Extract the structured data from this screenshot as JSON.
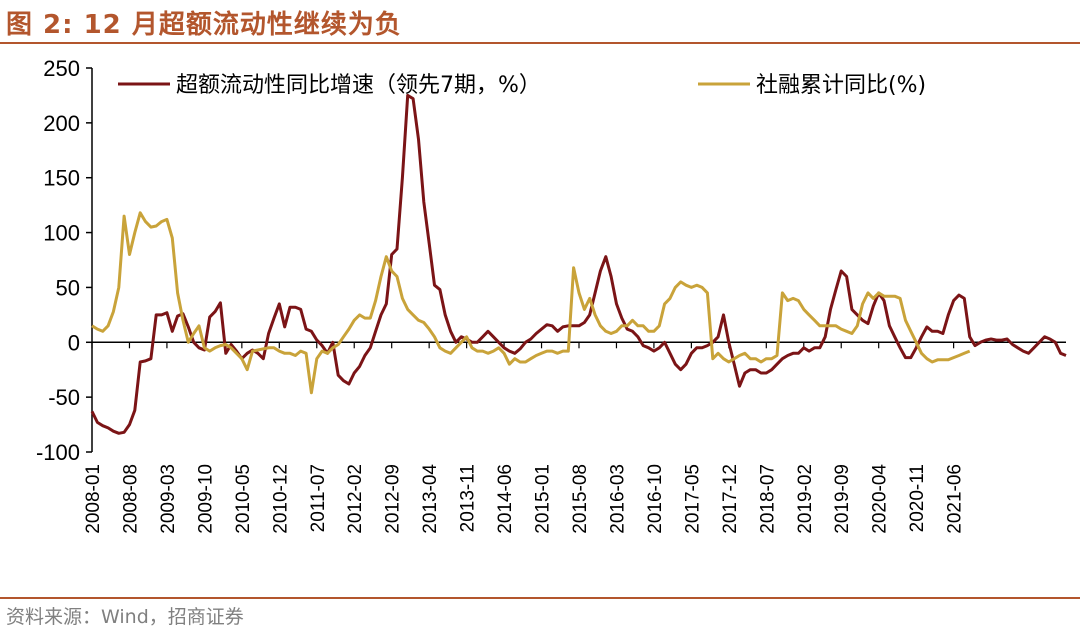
{
  "header": {
    "title": "图 2:  12 月超额流动性继续为负"
  },
  "footer": {
    "source": "资料来源：Wind，招商证券"
  },
  "colors": {
    "accent": "#b3562d",
    "series1": "#7b1416",
    "series2": "#c9a33a"
  },
  "chart_data": {
    "type": "line",
    "title": "",
    "xlabel": "",
    "ylabel": "",
    "ylim": [
      -100,
      250
    ],
    "yticks": [
      -100,
      -50,
      0,
      50,
      100,
      150,
      200,
      250
    ],
    "xticks": [
      "2008-01",
      "2008-08",
      "2009-03",
      "2009-10",
      "2010-05",
      "2010-12",
      "2011-07",
      "2012-02",
      "2012-09",
      "2013-04",
      "2013-11",
      "2014-06",
      "2015-01",
      "2015-08",
      "2016-03",
      "2016-10",
      "2017-05",
      "2017-12",
      "2018-07",
      "2019-02",
      "2019-09",
      "2020-04",
      "2020-11",
      "2021-06"
    ],
    "x_start": "2008-01",
    "legend_position": "top",
    "grid": false,
    "series": [
      {
        "name": "超额流动性同比增速（领先7期，%）",
        "color": "#7b1416",
        "values": [
          -63,
          -73,
          -76,
          -78,
          -81,
          -83,
          -82,
          -75,
          -62,
          -18,
          -17,
          -15,
          25,
          25,
          27,
          10,
          24,
          26,
          14,
          0,
          -5,
          -7,
          23,
          28,
          36,
          -10,
          -2,
          -8,
          -15,
          -10,
          -7,
          -10,
          -15,
          8,
          22,
          35,
          14,
          32,
          32,
          30,
          12,
          10,
          2,
          -3,
          -10,
          0,
          -30,
          -35,
          -38,
          -28,
          -22,
          -12,
          -5,
          10,
          25,
          35,
          80,
          85,
          150,
          225,
          222,
          185,
          128,
          90,
          52,
          48,
          25,
          10,
          0,
          5,
          3,
          0,
          0,
          5,
          10,
          5,
          0,
          -5,
          -8,
          -10,
          -6,
          0,
          3,
          8,
          12,
          16,
          15,
          10,
          14,
          15,
          15,
          15,
          18,
          25,
          45,
          65,
          78,
          60,
          35,
          22,
          12,
          10,
          5,
          -3,
          -5,
          -8,
          -5,
          0,
          -10,
          -20,
          -25,
          -20,
          -10,
          -5,
          -5,
          -3,
          0,
          5,
          25,
          0,
          -20,
          -40,
          -28,
          -25,
          -25,
          -28,
          -28,
          -25,
          -20,
          -15,
          -12,
          -10,
          -10,
          -5,
          -8,
          -5,
          -5,
          5,
          30,
          48,
          65,
          60,
          30,
          25,
          20,
          17,
          33,
          45,
          38,
          15,
          5,
          -5,
          -14,
          -14,
          -5,
          5,
          14,
          10,
          10,
          8,
          25,
          38,
          43,
          40,
          5,
          -3,
          0,
          2,
          3,
          2,
          2,
          3,
          -2,
          -5,
          -8,
          -10,
          -5,
          0,
          5,
          3,
          0,
          -10,
          -12
        ]
      },
      {
        "name": "社融累计同比(%)",
        "color": "#c9a33a",
        "values": [
          15,
          12,
          10,
          15,
          28,
          50,
          115,
          80,
          100,
          118,
          110,
          105,
          106,
          110,
          112,
          95,
          45,
          20,
          0,
          8,
          15,
          -5,
          -8,
          -5,
          -3,
          -2,
          -5,
          -10,
          -15,
          -25,
          -8,
          -7,
          -6,
          -5,
          -5,
          -8,
          -10,
          -10,
          -12,
          -8,
          -10,
          -46,
          -15,
          -8,
          -10,
          -5,
          -2,
          5,
          12,
          20,
          25,
          22,
          22,
          38,
          60,
          78,
          65,
          60,
          40,
          30,
          25,
          20,
          18,
          12,
          5,
          -5,
          -8,
          -10,
          -5,
          0,
          5,
          -5,
          -8,
          -8,
          -10,
          -8,
          -5,
          -10,
          -20,
          -15,
          -18,
          -18,
          -15,
          -12,
          -10,
          -8,
          -8,
          -10,
          -8,
          -8,
          68,
          45,
          30,
          40,
          25,
          15,
          10,
          8,
          10,
          15,
          15,
          20,
          15,
          15,
          10,
          10,
          15,
          35,
          40,
          50,
          55,
          52,
          50,
          52,
          50,
          45,
          -15,
          -10,
          -15,
          -18,
          -15,
          -12,
          -10,
          -15,
          -15,
          -18,
          -15,
          -15,
          -12,
          45,
          38,
          40,
          38,
          30,
          25,
          20,
          15,
          15,
          15,
          15,
          12,
          10,
          8,
          15,
          35,
          45,
          40,
          45,
          42,
          42,
          42,
          40,
          20,
          10,
          0,
          -10,
          -15,
          -18,
          -16,
          -16,
          -16,
          -14,
          -12,
          -10,
          -8
        ]
      }
    ]
  }
}
